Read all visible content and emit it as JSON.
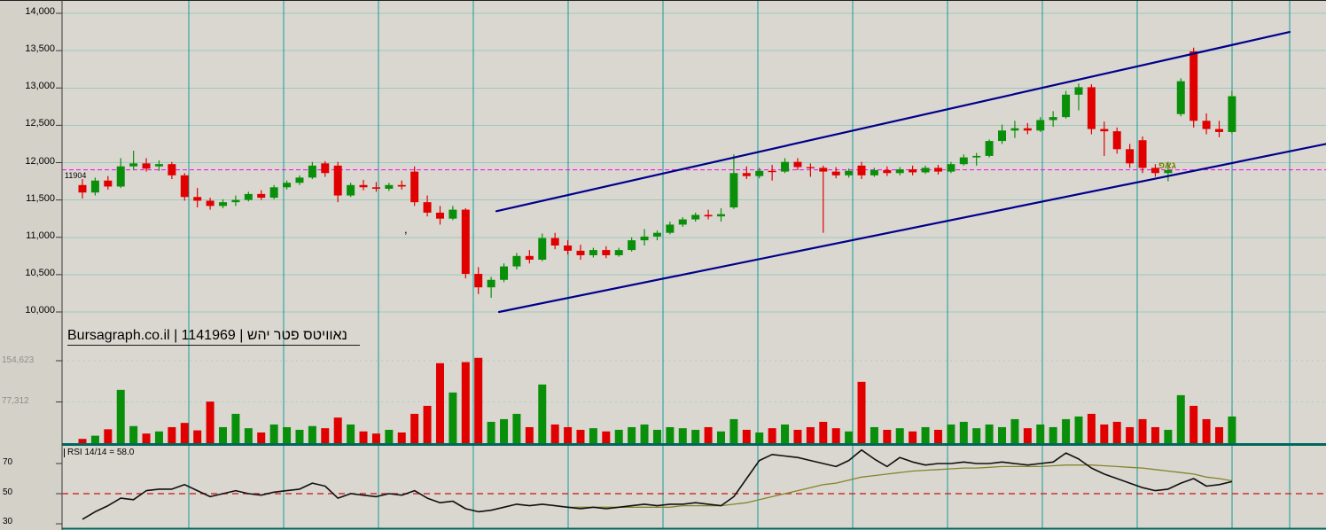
{
  "header": {
    "title": "Bursagraph.co.il | 1141969 | נאוויטס פטר יהש"
  },
  "axes": {
    "price_ticks": [
      "14,000",
      "13,500",
      "13,000",
      "12,500",
      "12,000",
      "11,500",
      "11,000",
      "10,500",
      "10,000"
    ],
    "volume_ticks": [
      "154,623",
      "77,312"
    ],
    "rsi_ticks": [
      "70",
      "50",
      "30"
    ]
  },
  "annotations": {
    "price_line_label": "11904",
    "price_line_value": 11904,
    "gap_label": "גאפ",
    "stray_mark": ","
  },
  "rsi": {
    "label": "RSI 14/14 = 58.0",
    "period": "14/14",
    "last_value": 58.0
  },
  "colors": {
    "page_bg": "#d4d1c9",
    "plot_bg": "#dad7d0",
    "grid_v": "#129c96",
    "grid_h": "#9cc9bd",
    "grid_dash": "#a7cfc6",
    "up": "#0a8f0a",
    "down": "#e00000",
    "channel": "#00008b",
    "price_line": "#ff00ff",
    "baseline": "#01675d",
    "rsi_line": "#101010",
    "rsi_ma": "#84842a",
    "rsi_mid": "#cc3333",
    "axis": "#3a3a3a"
  },
  "chart_data": [
    {
      "type": "candlestick",
      "name": "price",
      "ylim": [
        10000,
        14000
      ],
      "ytick_values": [
        14000,
        13500,
        13000,
        12500,
        12000,
        11500,
        11000,
        10500,
        10000
      ],
      "grid": true,
      "hline": {
        "price": 11904,
        "style": "dashed",
        "color": "#ff00ff",
        "label": "11904"
      },
      "channel": {
        "upper": {
          "x1": 560,
          "price1": 11350,
          "x2": 1455,
          "price2": 13750
        },
        "lower": {
          "x1": 563,
          "price1": 10000,
          "x2": 1496,
          "price2": 12250
        }
      },
      "ohlc": [
        [
          11700,
          11780,
          11520,
          11600
        ],
        [
          11600,
          11800,
          11560,
          11760
        ],
        [
          11760,
          11820,
          11640,
          11680
        ],
        [
          11680,
          12060,
          11660,
          11950
        ],
        [
          11950,
          12160,
          11900,
          11990
        ],
        [
          11990,
          12060,
          11880,
          11920
        ],
        [
          11950,
          12030,
          11890,
          11980
        ],
        [
          11980,
          12010,
          11780,
          11830
        ],
        [
          11830,
          11860,
          11490,
          11540
        ],
        [
          11540,
          11660,
          11400,
          11490
        ],
        [
          11490,
          11530,
          11370,
          11420
        ],
        [
          11420,
          11510,
          11390,
          11470
        ],
        [
          11470,
          11560,
          11420,
          11500
        ],
        [
          11500,
          11610,
          11480,
          11580
        ],
        [
          11580,
          11630,
          11500,
          11530
        ],
        [
          11530,
          11700,
          11510,
          11670
        ],
        [
          11670,
          11760,
          11640,
          11730
        ],
        [
          11730,
          11830,
          11700,
          11800
        ],
        [
          11800,
          12010,
          11780,
          11960
        ],
        [
          11990,
          12020,
          11810,
          11860
        ],
        [
          11960,
          12010,
          11470,
          11560
        ],
        [
          11560,
          11730,
          11540,
          11700
        ],
        [
          11700,
          11770,
          11630,
          11670
        ],
        [
          11670,
          11740,
          11610,
          11650
        ],
        [
          11650,
          11730,
          11620,
          11700
        ],
        [
          11700,
          11760,
          11640,
          11680
        ],
        [
          11880,
          11950,
          11420,
          11470
        ],
        [
          11470,
          11560,
          11280,
          11330
        ],
        [
          11330,
          11420,
          11170,
          11250
        ],
        [
          11250,
          11420,
          11230,
          11370
        ],
        [
          11370,
          11390,
          10450,
          10510
        ],
        [
          10510,
          10600,
          10240,
          10330
        ],
        [
          10330,
          10470,
          10190,
          10430
        ],
        [
          10430,
          10650,
          10400,
          10610
        ],
        [
          10610,
          10790,
          10570,
          10750
        ],
        [
          10750,
          10830,
          10650,
          10700
        ],
        [
          10700,
          11050,
          10680,
          10990
        ],
        [
          10990,
          11060,
          10840,
          10890
        ],
        [
          10890,
          10960,
          10770,
          10820
        ],
        [
          10820,
          10900,
          10700,
          10760
        ],
        [
          10760,
          10860,
          10730,
          10830
        ],
        [
          10830,
          10880,
          10720,
          10760
        ],
        [
          10760,
          10860,
          10740,
          10830
        ],
        [
          10830,
          11000,
          10810,
          10960
        ],
        [
          10960,
          11110,
          10890,
          11010
        ],
        [
          11010,
          11090,
          10960,
          11060
        ],
        [
          11060,
          11210,
          11040,
          11170
        ],
        [
          11170,
          11270,
          11140,
          11240
        ],
        [
          11240,
          11330,
          11210,
          11300
        ],
        [
          11300,
          11370,
          11240,
          11280
        ],
        [
          11280,
          11390,
          11210,
          11310
        ],
        [
          11400,
          12110,
          11380,
          11860
        ],
        [
          11860,
          11950,
          11780,
          11820
        ],
        [
          11820,
          11930,
          11790,
          11890
        ],
        [
          11890,
          11970,
          11760,
          11880
        ],
        [
          11880,
          12060,
          11860,
          12010
        ],
        [
          12010,
          12060,
          11900,
          11940
        ],
        [
          11940,
          11990,
          11810,
          11930
        ],
        [
          11930,
          11960,
          11060,
          11880
        ],
        [
          11880,
          11940,
          11790,
          11830
        ],
        [
          11830,
          11920,
          11800,
          11890
        ],
        [
          11960,
          12010,
          11780,
          11830
        ],
        [
          11830,
          11930,
          11810,
          11900
        ],
        [
          11900,
          11950,
          11820,
          11860
        ],
        [
          11860,
          11940,
          11830,
          11910
        ],
        [
          11910,
          11960,
          11830,
          11870
        ],
        [
          11870,
          11960,
          11850,
          11930
        ],
        [
          11930,
          11970,
          11840,
          11880
        ],
        [
          11880,
          12010,
          11860,
          11980
        ],
        [
          11980,
          12110,
          11960,
          12070
        ],
        [
          12070,
          12130,
          11960,
          12090
        ],
        [
          12090,
          12310,
          12070,
          12290
        ],
        [
          12290,
          12510,
          12250,
          12430
        ],
        [
          12430,
          12560,
          12330,
          12460
        ],
        [
          12460,
          12530,
          12380,
          12430
        ],
        [
          12430,
          12610,
          12410,
          12570
        ],
        [
          12570,
          12690,
          12480,
          12610
        ],
        [
          12610,
          12960,
          12590,
          12910
        ],
        [
          12910,
          13060,
          12700,
          13010
        ],
        [
          13010,
          13050,
          12380,
          12450
        ],
        [
          12450,
          12550,
          12090,
          12420
        ],
        [
          12420,
          12470,
          12120,
          12180
        ],
        [
          12180,
          12250,
          11930,
          11990
        ],
        [
          12300,
          12350,
          11860,
          11930
        ],
        [
          11930,
          11980,
          11810,
          11860
        ],
        [
          11860,
          12010,
          11750,
          11900
        ],
        [
          12650,
          13130,
          12620,
          13090
        ],
        [
          13490,
          13540,
          12470,
          12560
        ],
        [
          12560,
          12660,
          12380,
          12450
        ],
        [
          12450,
          12560,
          12340,
          12410
        ],
        [
          12410,
          12960,
          12390,
          12890
        ]
      ]
    },
    {
      "type": "bar",
      "name": "volume",
      "ytick_values": [
        154623,
        77312
      ],
      "values": [
        8000,
        14000,
        26000,
        100000,
        32000,
        18000,
        22000,
        30000,
        38000,
        24000,
        78000,
        30000,
        55000,
        28000,
        20000,
        35000,
        30000,
        25000,
        32000,
        28000,
        48000,
        35000,
        22000,
        18000,
        25000,
        20000,
        55000,
        70000,
        150000,
        95000,
        152000,
        160000,
        40000,
        45000,
        55000,
        30000,
        110000,
        35000,
        30000,
        25000,
        28000,
        22000,
        25000,
        30000,
        35000,
        25000,
        30000,
        28000,
        25000,
        30000,
        22000,
        45000,
        25000,
        20000,
        28000,
        35000,
        25000,
        30000,
        40000,
        28000,
        22000,
        115000,
        30000,
        25000,
        28000,
        22000,
        30000,
        25000,
        35000,
        40000,
        28000,
        35000,
        30000,
        45000,
        28000,
        35000,
        30000,
        45000,
        50000,
        55000,
        35000,
        40000,
        30000,
        45000,
        30000,
        25000,
        90000,
        70000,
        45000,
        30000,
        50000
      ]
    },
    {
      "type": "line",
      "name": "rsi",
      "ylim": [
        30,
        70
      ],
      "midline": 50,
      "last_value": 58.0,
      "values": [
        33,
        38,
        42,
        47,
        46,
        52,
        53,
        53,
        56,
        52,
        48,
        50,
        52,
        50,
        49,
        51,
        52,
        53,
        57,
        55,
        47,
        50,
        49,
        48,
        50,
        49,
        52,
        47,
        44,
        45,
        40,
        38,
        39,
        41,
        43,
        42,
        43,
        42,
        41,
        40,
        41,
        40,
        41,
        42,
        43,
        42,
        43,
        43,
        44,
        43,
        42,
        48,
        60,
        72,
        76,
        75,
        74,
        72,
        70,
        68,
        72,
        79,
        73,
        68,
        74,
        71,
        69,
        70,
        70,
        71,
        70,
        70,
        71,
        70,
        69,
        70,
        71,
        77,
        73,
        67,
        63,
        60,
        57,
        54,
        52,
        53,
        57,
        60,
        55,
        56,
        58
      ],
      "ma_values": [
        null,
        null,
        null,
        null,
        null,
        null,
        null,
        null,
        null,
        null,
        null,
        null,
        null,
        null,
        null,
        null,
        null,
        null,
        null,
        null,
        null,
        null,
        null,
        null,
        null,
        null,
        null,
        null,
        null,
        null,
        null,
        null,
        null,
        null,
        null,
        null,
        null,
        null,
        41,
        41,
        41,
        41,
        41,
        41,
        41,
        41,
        41,
        42,
        42,
        42,
        42,
        43,
        44,
        46,
        48,
        50,
        52,
        54,
        56,
        57,
        59,
        61,
        62,
        63,
        64,
        65,
        65.5,
        66,
        66.5,
        67,
        67,
        67.5,
        68,
        68,
        68,
        68,
        68.5,
        69,
        69,
        69,
        68.5,
        68,
        67.5,
        67,
        66,
        65,
        64,
        63,
        61,
        60,
        58.5
      ]
    }
  ]
}
